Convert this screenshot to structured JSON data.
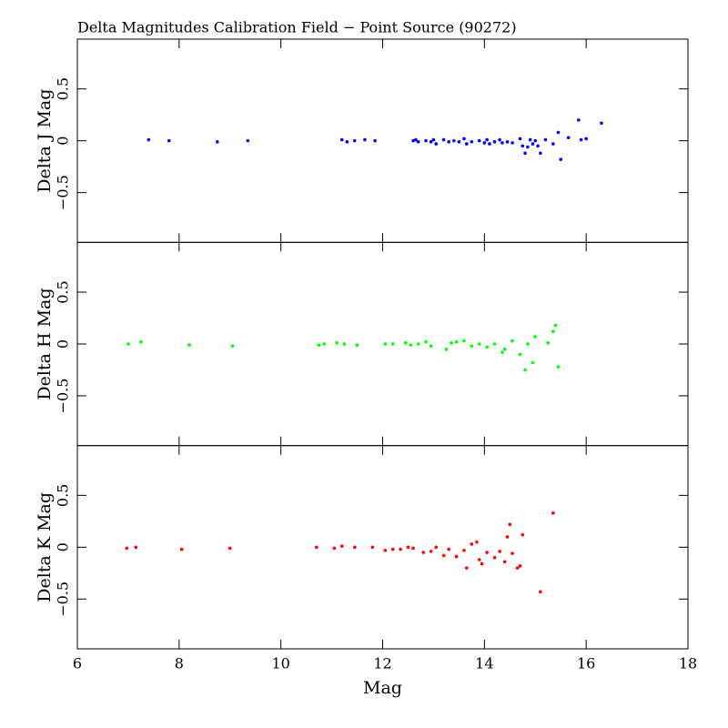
{
  "chart_data": [
    {
      "type": "scatter",
      "title": "Delta Magnitudes Calibration Field − Point Source (90272)",
      "ylabel": "Delta J Mag",
      "color": "#0000ff",
      "xlim": [
        6,
        18
      ],
      "xticks": [
        6,
        8,
        10,
        12,
        14,
        16,
        18
      ],
      "ylim": [
        -0.98,
        0.98
      ],
      "yticks": [
        {
          "value": -0.5,
          "label": "−0.5"
        },
        0,
        0.5
      ],
      "x": [
        7.4,
        7.8,
        8.75,
        9.35,
        11.2,
        11.3,
        11.45,
        11.65,
        11.85,
        12.6,
        12.65,
        12.7,
        12.85,
        12.95,
        13.0,
        13.05,
        13.2,
        13.3,
        13.4,
        13.5,
        13.6,
        13.65,
        13.75,
        13.9,
        14.0,
        14.05,
        14.1,
        14.2,
        14.3,
        14.35,
        14.45,
        14.55,
        14.7,
        14.75,
        14.8,
        14.85,
        14.9,
        14.95,
        15.0,
        15.05,
        15.1,
        15.2,
        15.35,
        15.45,
        15.5,
        15.65,
        15.85,
        15.9,
        16.0,
        16.3
      ],
      "values": [
        0.01,
        0.0,
        -0.01,
        0.0,
        0.01,
        -0.01,
        0.0,
        0.01,
        0.0,
        0.0,
        0.01,
        -0.01,
        0.0,
        -0.01,
        0.01,
        -0.03,
        0.01,
        -0.01,
        0.0,
        -0.01,
        0.02,
        -0.03,
        -0.01,
        0.0,
        -0.02,
        0.01,
        -0.03,
        -0.01,
        0.01,
        -0.02,
        -0.01,
        -0.02,
        0.02,
        -0.05,
        -0.12,
        -0.06,
        0.01,
        -0.03,
        0.0,
        -0.05,
        -0.12,
        0.01,
        -0.03,
        0.08,
        -0.18,
        0.03,
        0.2,
        0.01,
        0.02,
        0.17
      ]
    },
    {
      "type": "scatter",
      "ylabel": "Delta H Mag",
      "color": "#00ff00",
      "xlim": [
        6,
        18
      ],
      "xticks": [
        6,
        8,
        10,
        12,
        14,
        16,
        18
      ],
      "ylim": [
        -0.98,
        0.98
      ],
      "yticks": [
        {
          "value": -0.5,
          "label": "−0.5"
        },
        0,
        0.5
      ],
      "x": [
        7.0,
        7.25,
        8.2,
        9.05,
        10.75,
        10.85,
        11.1,
        11.25,
        11.5,
        12.05,
        12.2,
        12.45,
        12.55,
        12.7,
        12.85,
        12.95,
        13.25,
        13.35,
        13.45,
        13.6,
        13.75,
        13.9,
        14.05,
        14.2,
        14.35,
        14.4,
        14.55,
        14.7,
        14.8,
        14.85,
        14.95,
        15.0,
        15.25,
        15.35,
        15.4,
        15.45
      ],
      "values": [
        0.0,
        0.02,
        -0.01,
        -0.02,
        -0.01,
        0.0,
        0.01,
        0.0,
        -0.01,
        0.0,
        0.0,
        0.01,
        -0.01,
        0.0,
        0.02,
        -0.02,
        -0.05,
        0.01,
        0.02,
        0.03,
        -0.02,
        0.0,
        -0.03,
        0.0,
        -0.08,
        -0.05,
        0.03,
        -0.1,
        -0.25,
        0.0,
        -0.18,
        0.07,
        0.01,
        0.12,
        0.18,
        -0.22
      ]
    },
    {
      "type": "scatter",
      "ylabel": "Delta K Mag",
      "xlabel": "Mag",
      "color": "#ff0000",
      "xlim": [
        6,
        18
      ],
      "xticks": [
        6,
        8,
        10,
        12,
        14,
        16,
        18
      ],
      "ylim": [
        -0.98,
        0.98
      ],
      "yticks": [
        {
          "value": -0.5,
          "label": "−0.5"
        },
        0,
        0.5
      ],
      "x": [
        6.97,
        7.15,
        8.05,
        9.0,
        10.7,
        11.05,
        11.2,
        11.45,
        11.8,
        12.05,
        12.2,
        12.35,
        12.5,
        12.6,
        12.8,
        12.95,
        13.05,
        13.2,
        13.3,
        13.45,
        13.6,
        13.65,
        13.75,
        13.85,
        13.9,
        13.95,
        14.05,
        14.2,
        14.3,
        14.4,
        14.45,
        14.5,
        14.55,
        14.65,
        14.7,
        14.75,
        15.1,
        15.35
      ],
      "values": [
        -0.01,
        0.0,
        -0.02,
        -0.01,
        0.0,
        -0.01,
        0.01,
        0.0,
        0.0,
        -0.03,
        -0.02,
        -0.02,
        0.0,
        -0.01,
        -0.05,
        -0.04,
        0.0,
        -0.08,
        -0.02,
        -0.09,
        -0.03,
        -0.2,
        0.03,
        0.05,
        -0.12,
        -0.16,
        -0.05,
        -0.1,
        -0.04,
        -0.14,
        0.1,
        0.22,
        -0.06,
        -0.2,
        -0.18,
        0.12,
        -0.43,
        0.33
      ]
    }
  ]
}
